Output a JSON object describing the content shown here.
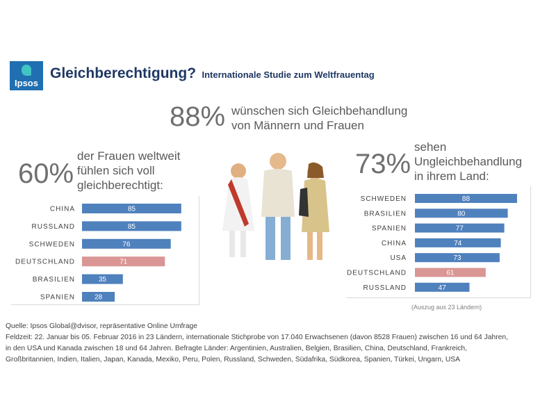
{
  "logo": {
    "text": "Ipsos"
  },
  "header": {
    "title": "Gleichberechtigung?",
    "subtitle": "Internationale  Studie zum Weltfrauentag"
  },
  "center_stat": {
    "value": "88%",
    "line1": "wünschen sich Gleichbehandlung",
    "line2": "von Männern und Frauen"
  },
  "left_stat": {
    "value": "60%",
    "line1": "der Frauen weltweit",
    "line2": "fühlen sich voll",
    "line3": "gleichberechtigt:"
  },
  "right_stat": {
    "value": "73%",
    "line1": "sehen",
    "line2": "Ungleichbehandlung",
    "line3": "in ihrem Land:"
  },
  "colors": {
    "bar": "#4f81bd",
    "highlight": "#d99694",
    "title": "#1f3864"
  },
  "chart_data": [
    {
      "type": "bar",
      "orientation": "horizontal",
      "categories": [
        "CHINA",
        "RUSSLAND",
        "SCHWEDEN",
        "DEUTSCHLAND",
        "BRASILIEN",
        "SPANIEN"
      ],
      "values": [
        85,
        85,
        76,
        71,
        35,
        28
      ],
      "highlight": "DEUTSCHLAND",
      "xlim": [
        0,
        100
      ],
      "grid": false
    },
    {
      "type": "bar",
      "orientation": "horizontal",
      "categories": [
        "SCHWEDEN",
        "BRASILIEN",
        "SPANIEN",
        "CHINA",
        "USA",
        "DEUTSCHLAND",
        "RUSSLAND"
      ],
      "values": [
        88,
        80,
        77,
        74,
        73,
        61,
        47
      ],
      "highlight": "DEUTSCHLAND",
      "xlim": [
        0,
        100
      ],
      "grid": false
    }
  ],
  "note": "(Auszug aus 23 Ländern)",
  "source": {
    "line1": "Quelle: Ipsos Global@dvisor, repräsentative Online Umfrage",
    "line2": "Feldzeit: 22. Januar bis 05. Februar 2016 in 23 Ländern, internationale Stichprobe von 17.040 Erwachsenen (davon 8528 Frauen) zwischen 16 und 64 Jahren,",
    "line3": "in den USA und Kanada zwischen 18 und 64 Jahren. Befragte Länder: Argentinien, Australien, Belgien, Brasilien, China, Deutschland, Frankreich,",
    "line4": "Großbritannien, Indien, Italien, Japan, Kanada, Mexiko, Peru, Polen, Russland, Schweden, Südafrika, Südkorea, Spanien, Türkei, Ungarn, USA"
  }
}
